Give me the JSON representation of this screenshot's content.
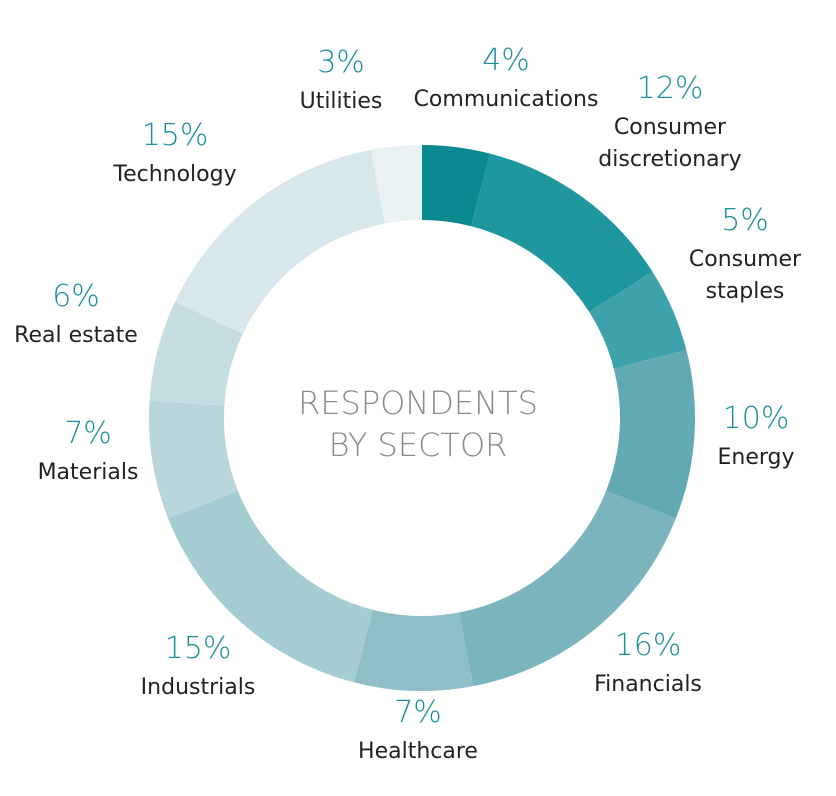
{
  "chart_data": {
    "type": "pie",
    "title": "",
    "center_label": [
      "RESPONDENTS",
      "BY SECTOR"
    ],
    "percent_color": "#1b8f98",
    "slices": [
      {
        "name": "Communications",
        "label_lines": [
          "Communications"
        ],
        "value": 4,
        "percent_label": "4%",
        "color": "#0a8a90"
      },
      {
        "name": "Consumer discretionary",
        "label_lines": [
          "Consumer",
          "discretionary"
        ],
        "value": 12,
        "percent_label": "12%",
        "color": "#1e979f"
      },
      {
        "name": "Consumer staples",
        "label_lines": [
          "Consumer",
          "staples"
        ],
        "value": 5,
        "percent_label": "5%",
        "color": "#3ea2ac"
      },
      {
        "name": "Energy",
        "label_lines": [
          "Energy"
        ],
        "value": 10,
        "percent_label": "10%",
        "color": "#62a9b3"
      },
      {
        "name": "Financials",
        "label_lines": [
          "Financials"
        ],
        "value": 16,
        "percent_label": "16%",
        "color": "#7cb4bd"
      },
      {
        "name": "Healthcare",
        "label_lines": [
          "Healthcare"
        ],
        "value": 7,
        "percent_label": "7%",
        "color": "#8fbec6"
      },
      {
        "name": "Industrials",
        "label_lines": [
          "Industrials"
        ],
        "value": 15,
        "percent_label": "15%",
        "color": "#a4ccd2"
      },
      {
        "name": "Materials",
        "label_lines": [
          "Materials"
        ],
        "value": 7,
        "percent_label": "7%",
        "color": "#b7d5da"
      },
      {
        "name": "Real estate",
        "label_lines": [
          "Real estate"
        ],
        "value": 6,
        "percent_label": "6%",
        "color": "#c6dde2"
      },
      {
        "name": "Technology",
        "label_lines": [
          "Technology"
        ],
        "value": 15,
        "percent_label": "15%",
        "color": "#d7e7eb"
      },
      {
        "name": "Utilities",
        "label_lines": [
          "Utilities"
        ],
        "value": 3,
        "percent_label": "3%",
        "color": "#e9f1f3"
      }
    ]
  }
}
